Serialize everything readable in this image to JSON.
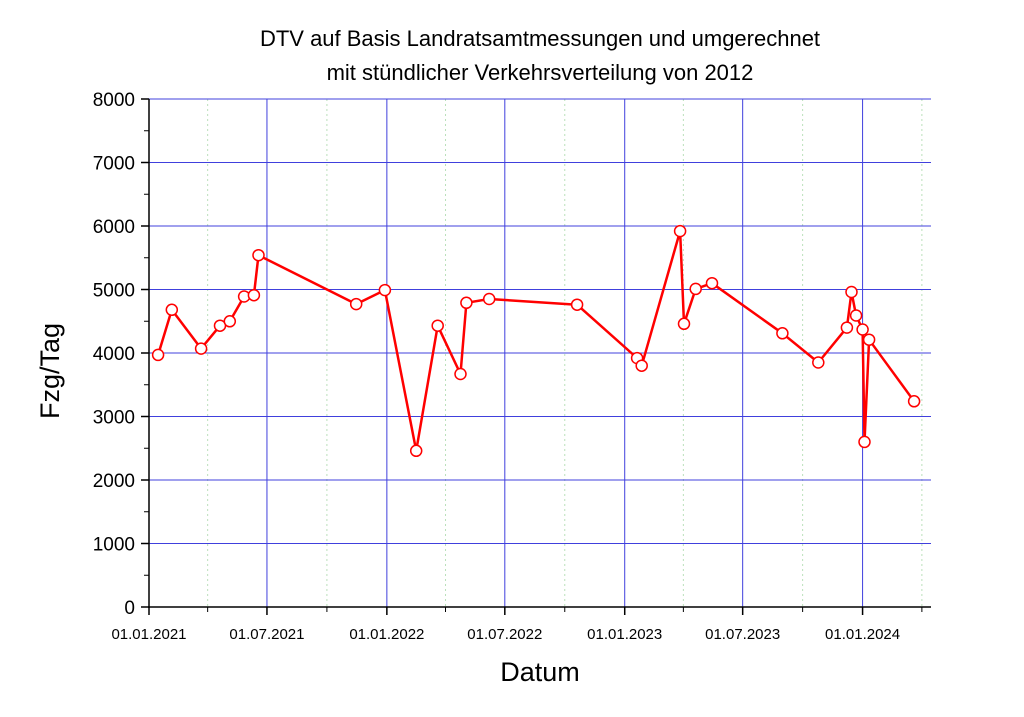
{
  "chart_data": {
    "type": "line",
    "title": "DTV auf Basis Landratsamtmessungen und umgerechnet",
    "subtitle": "mit stündlicher Verkehrsverteilung von 2012",
    "xlabel": "Datum",
    "ylabel": "Fzg/Tag",
    "xlim": [
      "2021-01-01",
      "2024-04-15"
    ],
    "ylim": [
      0,
      8000
    ],
    "x_ticks": [
      "01.01.2021",
      "01.07.2021",
      "01.01.2022",
      "01.07.2022",
      "01.01.2023",
      "01.07.2023",
      "01.01.2024"
    ],
    "y_ticks": [
      "0",
      "1000",
      "2000",
      "3000",
      "4000",
      "5000",
      "6000",
      "7000",
      "8000"
    ],
    "grid": true,
    "colors": {
      "line": "#ff0000",
      "grid": "#4040dd",
      "minor_grid": "#bbe0bb"
    },
    "series": [
      {
        "x": [
          "2021-01-15",
          "2021-02-05",
          "2021-03-22",
          "2021-04-20",
          "2021-05-05",
          "2021-05-27",
          "2021-06-11",
          "2021-06-18",
          "2021-11-15",
          "2021-12-29",
          "2022-02-15",
          "2022-03-20",
          "2022-04-24",
          "2022-05-03",
          "2022-06-07",
          "2022-10-20",
          "2023-01-20",
          "2023-01-27",
          "2023-03-27",
          "2023-04-02",
          "2023-04-20",
          "2023-05-15",
          "2023-08-31",
          "2023-10-25",
          "2023-12-08",
          "2023-12-15",
          "2023-12-22",
          "2024-01-01",
          "2024-01-04",
          "2024-01-11",
          "2024-03-20"
        ],
        "y": [
          3970,
          4680,
          4070,
          4430,
          4500,
          4890,
          4910,
          5540,
          4770,
          4990,
          2460,
          4430,
          3670,
          4790,
          4850,
          4760,
          3920,
          3800,
          5920,
          4460,
          5010,
          5100,
          4310,
          3850,
          4400,
          4960,
          4590,
          4370,
          2600,
          4210,
          3240
        ]
      }
    ]
  }
}
